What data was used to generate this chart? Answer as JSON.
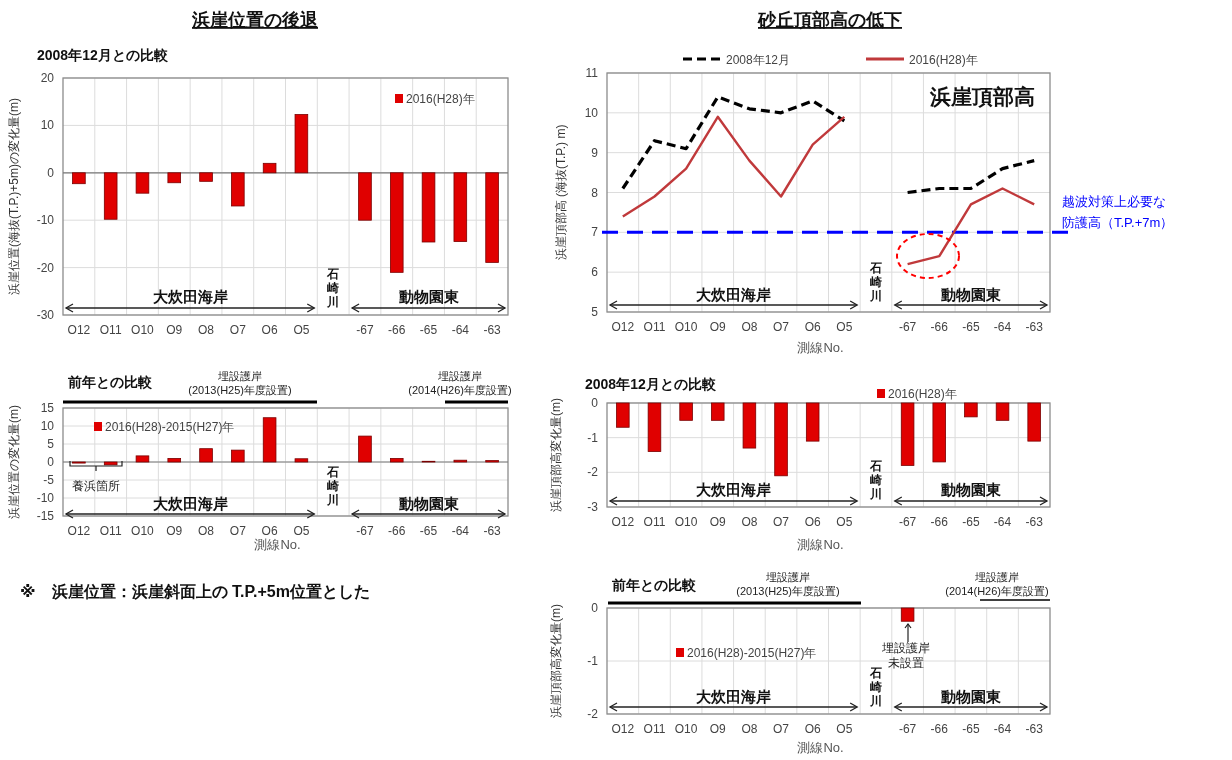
{
  "chart_data": [
    {
      "type": "bar",
      "title": "浜崖位置の後退",
      "subtitle": "2008年12月との比較",
      "ylabel": "浜崖位置(海抜(T.P.)+5m)の変化量(m)",
      "categories": [
        "O12",
        "O11",
        "O10",
        "O9",
        "O8",
        "O7",
        "O6",
        "O5",
        null,
        "-67",
        "-66",
        "-65",
        "-64",
        "-63"
      ],
      "series": [
        {
          "name": "2016(H28)年",
          "color": "#e00000",
          "values": [
            -2.3,
            -9.8,
            -4.3,
            -2.1,
            -1.8,
            -7.0,
            2.0,
            12.3,
            null,
            -10.0,
            -21.0,
            -14.6,
            -14.5,
            -18.9
          ]
        }
      ],
      "ylim": [
        -30,
        20
      ],
      "yticks": [
        -30,
        -20,
        -10,
        0,
        10,
        20
      ],
      "grid": true,
      "legend": "top right",
      "annotations": [
        "大炊田海岸",
        "石崎川",
        "動物園東"
      ]
    },
    {
      "type": "bar",
      "subtitle": "前年との比較",
      "ylabel": "浜崖位置の変化量(m)",
      "xlabel": "測線No.",
      "categories": [
        "O12",
        "O11",
        "O10",
        "O9",
        "O8",
        "O7",
        "O6",
        "O5",
        null,
        "-67",
        "-66",
        "-65",
        "-64",
        "-63"
      ],
      "series": [
        {
          "name": "2016(H28)-2015(H27)年",
          "color": "#e00000",
          "values": [
            -0.3,
            -0.8,
            1.7,
            1.0,
            3.7,
            3.3,
            12.3,
            0.9,
            null,
            7.2,
            1.0,
            0.2,
            0.5,
            0.4
          ]
        }
      ],
      "ylim": [
        -15,
        15
      ],
      "yticks": [
        -15,
        -10,
        -5,
        0,
        5,
        10,
        15
      ],
      "grid": true,
      "legend": "top left",
      "annotations": [
        "埋設護岸\n(2013(H25)年度設置)",
        "埋設護岸\n(2014(H26)年度設置)",
        "養浜箇所",
        "大炊田海岸",
        "石崎川",
        "動物園東",
        "※　浜崖位置：浜崖斜面上の T.P.+5m位置とした"
      ]
    },
    {
      "type": "line",
      "title": "砂丘頂部高の低下",
      "ylabel": "浜崖頂部高 (海抜(T.P.) m)",
      "xlabel": "測線No.",
      "categories": [
        "O12",
        "O11",
        "O10",
        "O9",
        "O8",
        "O7",
        "O6",
        "O5",
        null,
        "-67",
        "-66",
        "-65",
        "-64",
        "-63"
      ],
      "series": [
        {
          "name": "2008年12月",
          "color": "#000000",
          "line_style": "dashed",
          "values": [
            8.1,
            9.3,
            9.1,
            10.4,
            10.1,
            10.0,
            10.3,
            9.8,
            null,
            8.0,
            8.1,
            8.1,
            8.6,
            8.8
          ]
        },
        {
          "name": "2016(H28)年",
          "color": "#c0393b",
          "line_style": "solid",
          "values": [
            7.4,
            7.9,
            8.6,
            9.9,
            8.8,
            7.9,
            9.2,
            9.9,
            null,
            6.2,
            6.4,
            7.7,
            8.1,
            7.7
          ]
        }
      ],
      "ylim": [
        5,
        11
      ],
      "yticks": [
        5,
        6,
        7,
        8,
        9,
        10,
        11
      ],
      "grid": true,
      "legend": "top",
      "ref_lines": [
        {
          "axis": "y",
          "value": 7,
          "label": "越波対策上必要な防護高（T.P.+7m）",
          "color": "#0000ff",
          "line_style": "dashed"
        }
      ],
      "annotations": [
        "浜崖頂部高",
        "大炊田海岸",
        "石崎川",
        "動物園東"
      ]
    },
    {
      "type": "bar",
      "subtitle": "2008年12月との比較",
      "ylabel": "浜崖頂部高変化量(m)",
      "xlabel": "測線No.",
      "categories": [
        "O12",
        "O11",
        "O10",
        "O9",
        "O8",
        "O7",
        "O6",
        "O5",
        null,
        "-67",
        "-66",
        "-65",
        "-64",
        "-63"
      ],
      "series": [
        {
          "name": "2016(H28)年",
          "color": "#e00000",
          "values": [
            -0.7,
            -1.4,
            -0.5,
            -0.5,
            -1.3,
            -2.1,
            -1.1,
            null,
            null,
            -1.8,
            -1.7,
            -0.4,
            -0.5,
            -1.1
          ]
        }
      ],
      "ylim": [
        -3,
        0
      ],
      "yticks": [
        -3,
        -2,
        -1,
        0
      ],
      "grid": true,
      "legend": "top",
      "annotations": [
        "大炊田海岸",
        "石崎川",
        "動物園東"
      ]
    },
    {
      "type": "bar",
      "subtitle": "前年との比較",
      "ylabel": "浜崖頂部高変化量(m)",
      "xlabel": "測線No.",
      "categories": [
        "O12",
        "O11",
        "O10",
        "O9",
        "O8",
        "O7",
        "O6",
        "O5",
        null,
        "-67",
        "-66",
        "-65",
        "-64",
        "-63"
      ],
      "series": [
        {
          "name": "2016(H28)-2015(H27)年",
          "color": "#e00000",
          "values": [
            null,
            null,
            null,
            null,
            null,
            null,
            null,
            null,
            null,
            -0.25,
            null,
            null,
            null,
            null
          ]
        }
      ],
      "ylim": [
        -2,
        0
      ],
      "yticks": [
        -2,
        -1,
        0
      ],
      "grid": true,
      "legend": "left",
      "annotations": [
        "埋設護岸\n(2013(H25)年度設置)",
        "埋設護岸\n(2014(H26)年度設置)",
        "埋設護岸未設置",
        "大炊田海岸",
        "石崎川",
        "動物園東"
      ]
    }
  ]
}
